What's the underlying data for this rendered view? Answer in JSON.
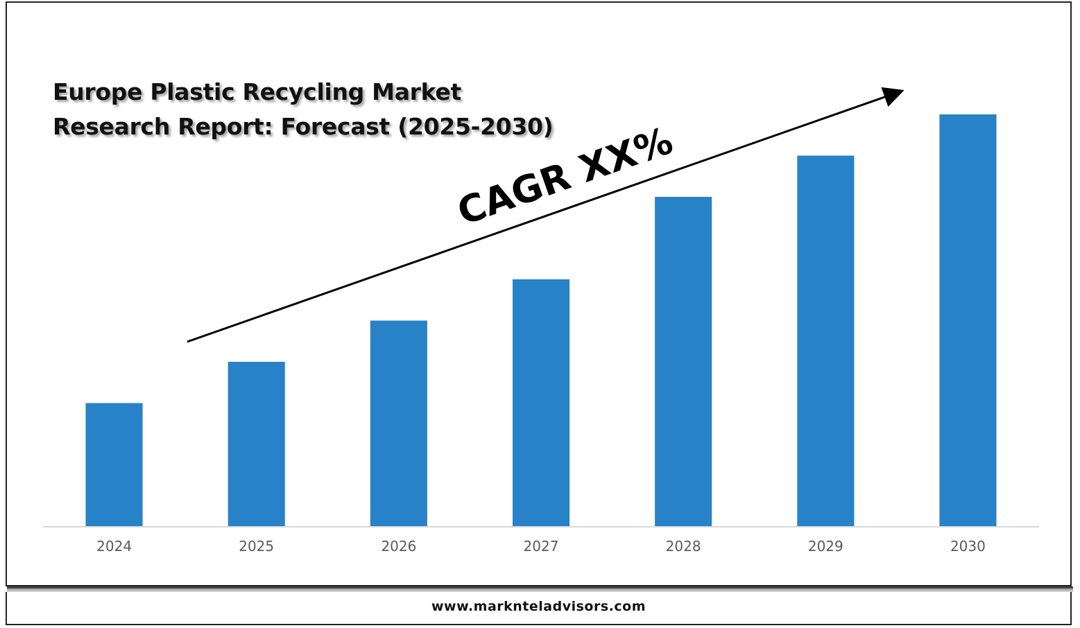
{
  "title": "Europe Plastic Recycling Market Research Report: Forecast (2025-2030)",
  "footer": {
    "website": "www.marknteladvisors.com"
  },
  "annotation": {
    "cagr_label": "CAGR XX%"
  },
  "colors": {
    "bar": "#2882c8",
    "axis": "#d9d9d9",
    "text": "#111111",
    "tick": "#595959"
  },
  "chart_data": {
    "type": "bar",
    "title": "Europe Plastic Recycling Market Research Report: Forecast (2025-2030)",
    "categories": [
      "2024",
      "2025",
      "2026",
      "2027",
      "2028",
      "2029",
      "2030"
    ],
    "values": [
      30,
      40,
      50,
      60,
      80,
      90,
      100
    ],
    "xlabel": "",
    "ylabel": "",
    "ylim": [
      0,
      100
    ],
    "grid": false,
    "legend": "none",
    "annotations": [
      "CAGR XX%"
    ]
  }
}
